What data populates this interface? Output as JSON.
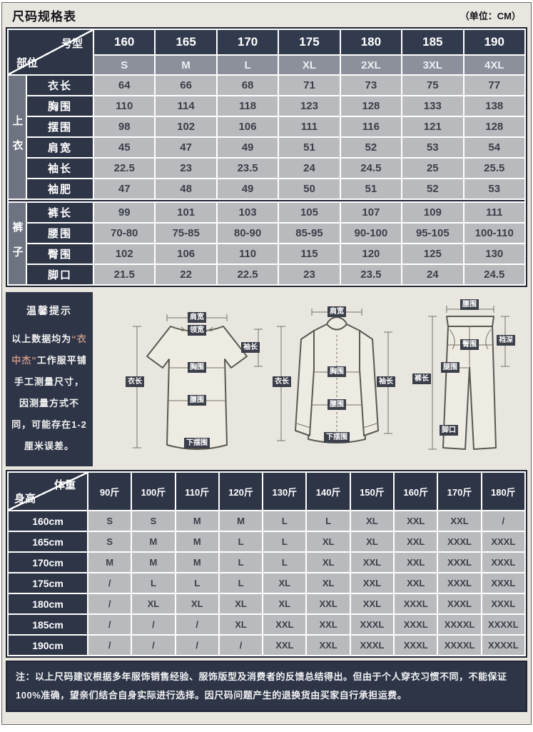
{
  "page": {
    "title": "尺码规格表",
    "unit": "（单位：CM）"
  },
  "size_table": {
    "corner": {
      "top": "号型",
      "bottom": "部位"
    },
    "models": [
      "160",
      "165",
      "170",
      "175",
      "180",
      "185",
      "190"
    ],
    "sizes": [
      "S",
      "M",
      "L",
      "XL",
      "2XL",
      "3XL",
      "4XL"
    ],
    "groups": [
      {
        "name": "上衣",
        "rows": [
          {
            "label": "衣长",
            "values": [
              "64",
              "66",
              "68",
              "71",
              "73",
              "75",
              "77"
            ]
          },
          {
            "label": "胸围",
            "values": [
              "110",
              "114",
              "118",
              "123",
              "128",
              "133",
              "138"
            ]
          },
          {
            "label": "摆围",
            "values": [
              "98",
              "102",
              "106",
              "111",
              "116",
              "121",
              "128"
            ]
          },
          {
            "label": "肩宽",
            "values": [
              "45",
              "47",
              "49",
              "51",
              "52",
              "53",
              "54"
            ]
          },
          {
            "label": "袖长",
            "values": [
              "22.5",
              "23",
              "23.5",
              "24",
              "24.5",
              "25",
              "25.5"
            ]
          },
          {
            "label": "袖肥",
            "values": [
              "47",
              "48",
              "49",
              "50",
              "51",
              "52",
              "53"
            ]
          }
        ]
      },
      {
        "name": "裤子",
        "rows": [
          {
            "label": "裤长",
            "values": [
              "99",
              "101",
              "103",
              "105",
              "107",
              "109",
              "111"
            ]
          },
          {
            "label": "腰围",
            "values": [
              "70-80",
              "75-85",
              "80-90",
              "85-95",
              "90-100",
              "95-105",
              "100-110"
            ]
          },
          {
            "label": "臀围",
            "values": [
              "102",
              "106",
              "110",
              "115",
              "120",
              "125",
              "130"
            ]
          },
          {
            "label": "脚口",
            "values": [
              "21.5",
              "22",
              "22.5",
              "23",
              "23.5",
              "24",
              "24.5"
            ]
          }
        ]
      }
    ]
  },
  "tips": {
    "title": "温馨提示",
    "text_before": "以上数据均为",
    "brand": "“衣中杰”",
    "text_after": "工作服平铺手工测量尺寸，因测量方式不同，可能存在1-2厘米误差。"
  },
  "diagrams": {
    "tshirt": {
      "labels": {
        "shoulder": "肩宽",
        "collar": "领宽",
        "sleeve": "袖长",
        "chest": "胸围",
        "waist": "腰围",
        "hem": "下摆围",
        "length": "衣长"
      }
    },
    "shirt": {
      "labels": {
        "shoulder": "肩宽",
        "length": "衣长",
        "chest": "胸围",
        "waist": "腰围",
        "hem": "下摆围",
        "sleeve": "袖长"
      }
    },
    "pants": {
      "labels": {
        "waist": "腰围",
        "rise": "裆深",
        "hip": "臀围",
        "thigh": "腿围",
        "length": "裤长",
        "cuff": "脚口"
      }
    }
  },
  "hw_table": {
    "corner": {
      "top": "体重",
      "bottom": "身高"
    },
    "weights": [
      "90斤",
      "100斤",
      "110斤",
      "120斤",
      "130斤",
      "140斤",
      "150斤",
      "160斤",
      "170斤",
      "180斤"
    ],
    "rows": [
      {
        "label": "160cm",
        "values": [
          "S",
          "S",
          "M",
          "M",
          "L",
          "L",
          "XL",
          "XXL",
          "XXL",
          "/"
        ]
      },
      {
        "label": "165cm",
        "values": [
          "S",
          "M",
          "M",
          "L",
          "L",
          "XL",
          "XL",
          "XXL",
          "XXXL",
          "XXXL"
        ]
      },
      {
        "label": "170cm",
        "values": [
          "M",
          "M",
          "M",
          "L",
          "L",
          "XL",
          "XXL",
          "XXL",
          "XXXL",
          "XXXL"
        ]
      },
      {
        "label": "175cm",
        "values": [
          "/",
          "L",
          "L",
          "L",
          "XL",
          "XL",
          "XXL",
          "XXL",
          "XXXL",
          "XXXL"
        ]
      },
      {
        "label": "180cm",
        "values": [
          "/",
          "XL",
          "XL",
          "XL",
          "XL",
          "XXL",
          "XXL",
          "XXXL",
          "XXXL",
          "XXXL"
        ]
      },
      {
        "label": "185cm",
        "values": [
          "/",
          "/",
          "/",
          "XL",
          "XXL",
          "XXL",
          "XXXL",
          "XXXL",
          "XXXXL",
          "XXXXL"
        ]
      },
      {
        "label": "190cm",
        "values": [
          "/",
          "/",
          "/",
          "/",
          "XXL",
          "XXL",
          "XXXL",
          "XXXL",
          "XXXXL",
          "XXXXL"
        ]
      }
    ]
  },
  "note": "注：以上尺码建议根据多年服饰销售经验、服饰版型及消费者的反馈总结得出。但由于个人穿衣习惯不同，不能保证100%准确，望亲们结合自身实际进行选择。因尺码问题产生的退换货由买家自行承担运费。",
  "colors": {
    "dark_navy": "#2e3547",
    "header_gray": "#8b909a",
    "group_gray": "#6d7380",
    "cell_gray": "#b9babd",
    "bg_beige": "#e9e6df",
    "brand_red": "#c59386",
    "frame_dark": "#1f2433"
  }
}
